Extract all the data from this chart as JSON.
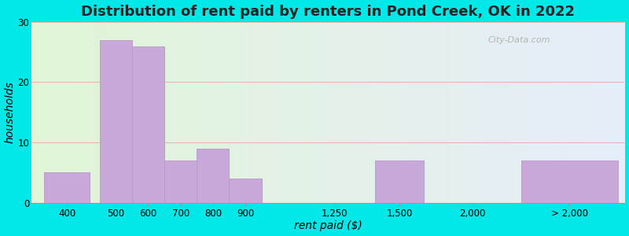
{
  "title": "Distribution of rent paid by renters in Pond Creek, OK in 2022",
  "xlabel": "rent paid ($)",
  "ylabel": "households",
  "bar_labels": [
    "400",
    "500",
    "600",
    "700",
    "800",
    "900",
    "1,250",
    "1,500",
    "2,000",
    "> 2,000"
  ],
  "bar_values": [
    5,
    27,
    26,
    7,
    9,
    4,
    0,
    7,
    0,
    7
  ],
  "bar_color": "#c8a8d8",
  "bar_edgecolor": "#b898c8",
  "ylim": [
    0,
    30
  ],
  "yticks": [
    0,
    10,
    20,
    30
  ],
  "bg_outer": "#00e8e8",
  "title_fontsize": 13,
  "axis_fontsize": 10,
  "tick_fontsize": 8.5,
  "watermark": "City-Data.com"
}
